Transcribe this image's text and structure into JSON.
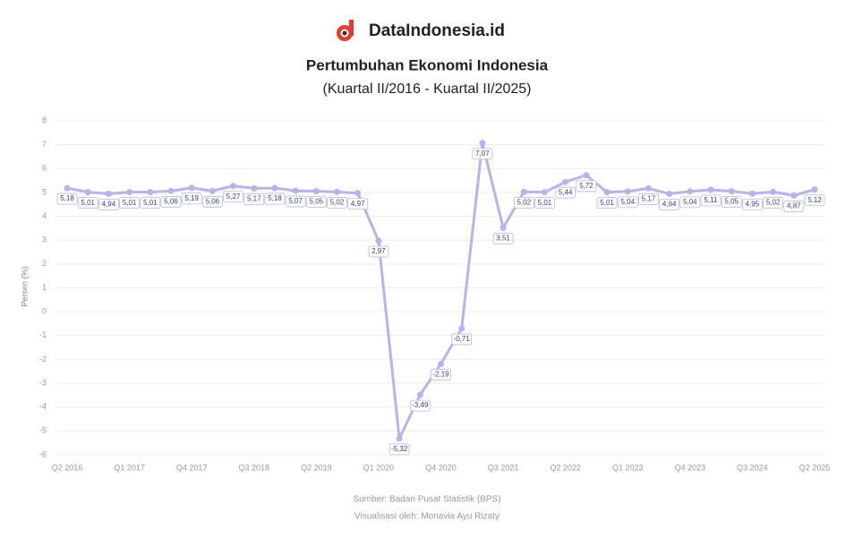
{
  "chart_data": {
    "type": "line",
    "brand": "DataIndonesia.id",
    "title": "Pertumbuhan Ekonomi Indonesia",
    "subtitle": "(Kuartal II/2016 - Kuartal II/2025)",
    "y_label": "Persen (%)",
    "source": "Sumber: Badan Pusat Statistik (BPS)",
    "credit": "Visualisasi oleh: Monavia Ayu Rizaty",
    "categories": [
      "Q2 2016",
      null,
      null,
      "Q1 2017",
      null,
      null,
      "Q4 2017",
      null,
      null,
      "Q3 2018",
      null,
      null,
      "Q2 2019",
      null,
      null,
      "Q1 2020",
      null,
      null,
      "Q4 2020",
      null,
      null,
      "Q3 2021",
      null,
      null,
      "Q2 2022",
      null,
      null,
      "Q1 2023",
      null,
      null,
      "Q4 2023",
      null,
      null,
      "Q3 2024",
      null,
      null,
      "Q2 2025"
    ],
    "series": [
      {
        "name": "Pertumbuhan Ekonomi",
        "color": "#b4b4ee",
        "values": [
          5.18,
          5.01,
          4.94,
          5.01,
          5.01,
          5.06,
          5.19,
          5.06,
          5.27,
          5.17,
          5.18,
          5.07,
          5.05,
          5.02,
          4.97,
          2.97,
          -5.32,
          -3.49,
          -2.19,
          -0.71,
          7.07,
          3.51,
          5.02,
          5.01,
          5.44,
          5.72,
          5.01,
          5.04,
          5.17,
          4.94,
          5.04,
          5.11,
          5.05,
          4.95,
          5.02,
          4.87,
          5.12
        ],
        "value_labels": [
          "5,18",
          "5,01",
          "4,94",
          "5,01",
          "5,01",
          "5,06",
          "5,19",
          "5,06",
          "5,27",
          "5,17",
          "5,18",
          "5,07",
          "5,05",
          "5,02",
          "4,97",
          "2,97",
          "-5,32",
          "-3,49",
          "-2,19",
          "-0,71",
          "7,07",
          "3,51",
          "5,02",
          "5,01",
          "5,44",
          "5,72",
          "5,01",
          "5,04",
          "5,17",
          "4,94",
          "5,04",
          "5,11",
          "5,05",
          "4,95",
          "5,02",
          "4,87",
          "5,12"
        ]
      }
    ],
    "ylim": [
      -6,
      8
    ],
    "yticks": [
      -6,
      -5,
      -4,
      -3,
      -2,
      -1,
      0,
      1,
      2,
      3,
      4,
      5,
      6,
      7,
      8
    ],
    "grid": true
  }
}
